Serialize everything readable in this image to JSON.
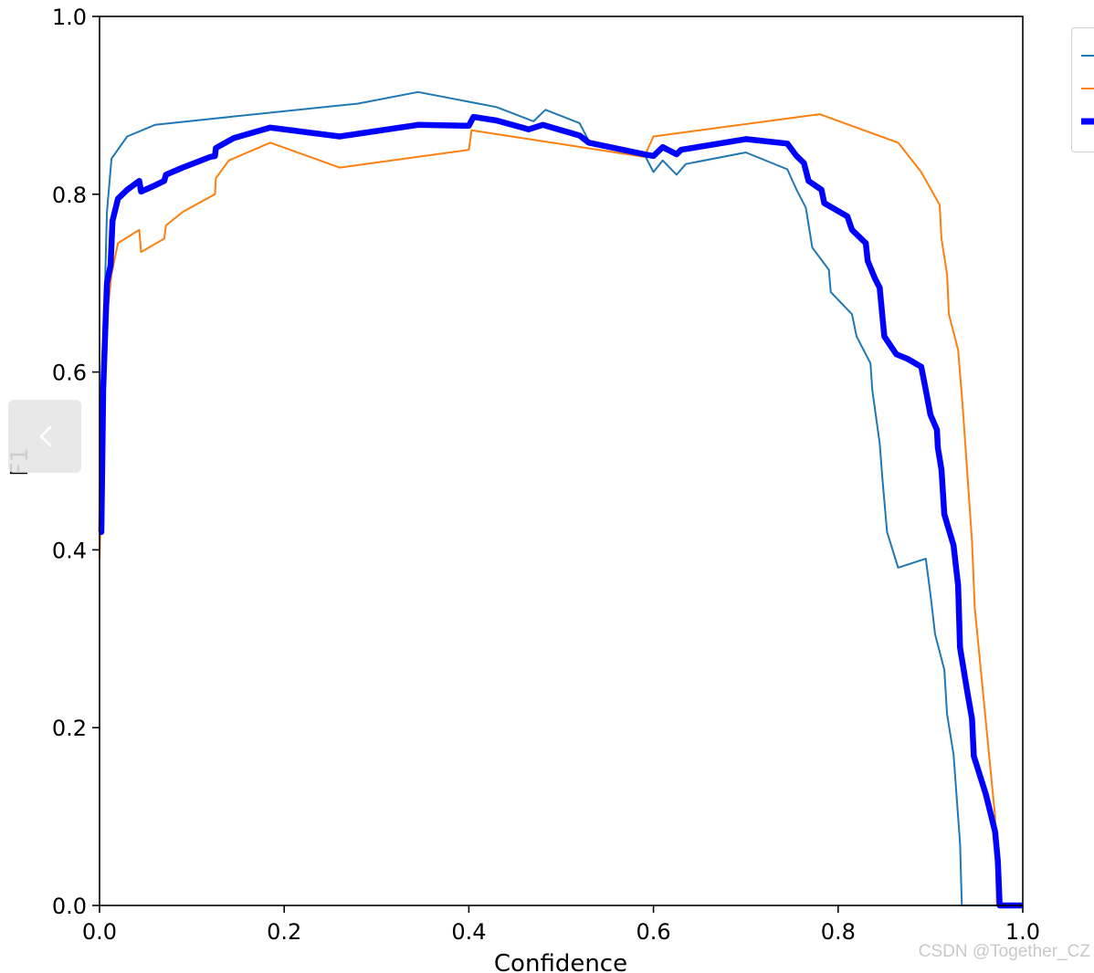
{
  "chart_data": {
    "type": "line",
    "xlabel": "Confidence",
    "ylabel": "F1",
    "xlim": [
      0.0,
      1.0
    ],
    "ylim": [
      0.0,
      1.0
    ],
    "x_ticks": [
      "0.0",
      "0.2",
      "0.4",
      "0.6",
      "0.8",
      "1.0"
    ],
    "y_ticks": [
      "0.0",
      "0.2",
      "0.4",
      "0.6",
      "0.8",
      "1.0"
    ],
    "grid": false,
    "legend": "top-right (cropped)",
    "series": [
      {
        "color": "#1f77b4",
        "line_width": "thin",
        "points": [
          [
            0.0,
            0.42
          ],
          [
            0.004,
            0.62
          ],
          [
            0.008,
            0.78
          ],
          [
            0.013,
            0.84
          ],
          [
            0.03,
            0.865
          ],
          [
            0.06,
            0.878
          ],
          [
            0.15,
            0.888
          ],
          [
            0.28,
            0.902
          ],
          [
            0.345,
            0.915
          ],
          [
            0.43,
            0.898
          ],
          [
            0.47,
            0.882
          ],
          [
            0.483,
            0.895
          ],
          [
            0.52,
            0.88
          ],
          [
            0.53,
            0.86
          ],
          [
            0.59,
            0.845
          ],
          [
            0.6,
            0.825
          ],
          [
            0.61,
            0.838
          ],
          [
            0.625,
            0.822
          ],
          [
            0.635,
            0.834
          ],
          [
            0.7,
            0.847
          ],
          [
            0.745,
            0.828
          ],
          [
            0.755,
            0.805
          ],
          [
            0.765,
            0.785
          ],
          [
            0.772,
            0.74
          ],
          [
            0.79,
            0.715
          ],
          [
            0.792,
            0.69
          ],
          [
            0.815,
            0.665
          ],
          [
            0.82,
            0.64
          ],
          [
            0.835,
            0.61
          ],
          [
            0.837,
            0.58
          ],
          [
            0.845,
            0.52
          ],
          [
            0.848,
            0.48
          ],
          [
            0.853,
            0.42
          ],
          [
            0.865,
            0.38
          ],
          [
            0.895,
            0.39
          ],
          [
            0.9,
            0.35
          ],
          [
            0.905,
            0.305
          ],
          [
            0.915,
            0.265
          ],
          [
            0.918,
            0.215
          ],
          [
            0.925,
            0.17
          ],
          [
            0.932,
            0.07
          ],
          [
            0.934,
            0.0
          ],
          [
            1.0,
            0.0
          ]
        ]
      },
      {
        "color": "#ff7f0e",
        "line_width": "thin",
        "points": [
          [
            0.0,
            0.39
          ],
          [
            0.004,
            0.55
          ],
          [
            0.008,
            0.66
          ],
          [
            0.013,
            0.71
          ],
          [
            0.02,
            0.745
          ],
          [
            0.043,
            0.76
          ],
          [
            0.045,
            0.735
          ],
          [
            0.07,
            0.75
          ],
          [
            0.072,
            0.765
          ],
          [
            0.09,
            0.78
          ],
          [
            0.125,
            0.8
          ],
          [
            0.126,
            0.818
          ],
          [
            0.14,
            0.838
          ],
          [
            0.185,
            0.858
          ],
          [
            0.26,
            0.83
          ],
          [
            0.4,
            0.85
          ],
          [
            0.403,
            0.872
          ],
          [
            0.59,
            0.842
          ],
          [
            0.6,
            0.865
          ],
          [
            0.78,
            0.89
          ],
          [
            0.865,
            0.858
          ],
          [
            0.89,
            0.825
          ],
          [
            0.91,
            0.788
          ],
          [
            0.912,
            0.75
          ],
          [
            0.918,
            0.71
          ],
          [
            0.92,
            0.665
          ],
          [
            0.93,
            0.625
          ],
          [
            0.935,
            0.56
          ],
          [
            0.945,
            0.41
          ],
          [
            0.948,
            0.335
          ],
          [
            0.97,
            0.1
          ],
          [
            0.972,
            0.0
          ],
          [
            1.0,
            0.0
          ]
        ]
      },
      {
        "color": "#0000ff",
        "line_width": "thick",
        "points": [
          [
            0.0,
            0.42
          ],
          [
            0.002,
            0.42
          ],
          [
            0.004,
            0.58
          ],
          [
            0.008,
            0.7
          ],
          [
            0.012,
            0.72
          ],
          [
            0.014,
            0.77
          ],
          [
            0.02,
            0.795
          ],
          [
            0.03,
            0.805
          ],
          [
            0.043,
            0.815
          ],
          [
            0.045,
            0.803
          ],
          [
            0.06,
            0.81
          ],
          [
            0.07,
            0.815
          ],
          [
            0.072,
            0.822
          ],
          [
            0.09,
            0.83
          ],
          [
            0.12,
            0.842
          ],
          [
            0.125,
            0.843
          ],
          [
            0.126,
            0.852
          ],
          [
            0.145,
            0.863
          ],
          [
            0.185,
            0.875
          ],
          [
            0.26,
            0.865
          ],
          [
            0.345,
            0.878
          ],
          [
            0.4,
            0.877
          ],
          [
            0.405,
            0.887
          ],
          [
            0.43,
            0.883
          ],
          [
            0.465,
            0.873
          ],
          [
            0.48,
            0.878
          ],
          [
            0.52,
            0.866
          ],
          [
            0.53,
            0.858
          ],
          [
            0.59,
            0.845
          ],
          [
            0.6,
            0.843
          ],
          [
            0.61,
            0.853
          ],
          [
            0.625,
            0.845
          ],
          [
            0.63,
            0.85
          ],
          [
            0.7,
            0.862
          ],
          [
            0.745,
            0.857
          ],
          [
            0.755,
            0.843
          ],
          [
            0.763,
            0.835
          ],
          [
            0.768,
            0.815
          ],
          [
            0.782,
            0.805
          ],
          [
            0.785,
            0.79
          ],
          [
            0.81,
            0.775
          ],
          [
            0.815,
            0.76
          ],
          [
            0.83,
            0.745
          ],
          [
            0.832,
            0.725
          ],
          [
            0.84,
            0.705
          ],
          [
            0.845,
            0.695
          ],
          [
            0.85,
            0.64
          ],
          [
            0.863,
            0.62
          ],
          [
            0.875,
            0.615
          ],
          [
            0.89,
            0.606
          ],
          [
            0.895,
            0.58
          ],
          [
            0.9,
            0.552
          ],
          [
            0.907,
            0.535
          ],
          [
            0.908,
            0.515
          ],
          [
            0.912,
            0.49
          ],
          [
            0.915,
            0.44
          ],
          [
            0.925,
            0.405
          ],
          [
            0.93,
            0.36
          ],
          [
            0.932,
            0.29
          ],
          [
            0.94,
            0.24
          ],
          [
            0.945,
            0.21
          ],
          [
            0.947,
            0.168
          ],
          [
            0.96,
            0.125
          ],
          [
            0.97,
            0.083
          ],
          [
            0.973,
            0.05
          ],
          [
            0.975,
            0.0
          ],
          [
            1.0,
            0.0
          ]
        ]
      }
    ],
    "watermark": "CSDN @Together_CZ"
  },
  "nav": {
    "prev_icon": "chevron-left-icon"
  }
}
